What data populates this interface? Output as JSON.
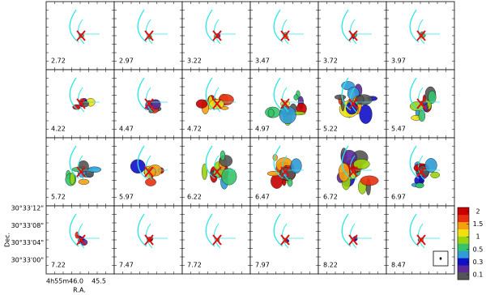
{
  "chart_data": {
    "type": "channel_map",
    "panels": [
      2.72,
      2.97,
      3.22,
      3.47,
      3.72,
      3.97,
      4.22,
      4.47,
      4.72,
      4.97,
      5.22,
      5.47,
      5.72,
      5.97,
      6.22,
      6.47,
      6.72,
      6.97,
      7.22,
      7.47,
      7.72,
      7.97,
      8.22,
      8.47
    ],
    "ylabel": "Dec.",
    "xlabel": "R.A.",
    "dec_ticks": [
      "30°33'12\"",
      "30°33'08\"",
      "30°33'04\"",
      "30°33'00\""
    ],
    "ra_ticks": [
      "4h55m46.0",
      "45.5"
    ],
    "colorbar": {
      "ticks": [
        0.1,
        0.3,
        0.5,
        1,
        1.5,
        2
      ],
      "colors": [
        "#555555",
        "#5a2a9a",
        "#1010c8",
        "#2f9bd8",
        "#36c46b",
        "#9ad30f",
        "#f0e010",
        "#f5a010",
        "#e83010",
        "#c80000"
      ]
    }
  }
}
